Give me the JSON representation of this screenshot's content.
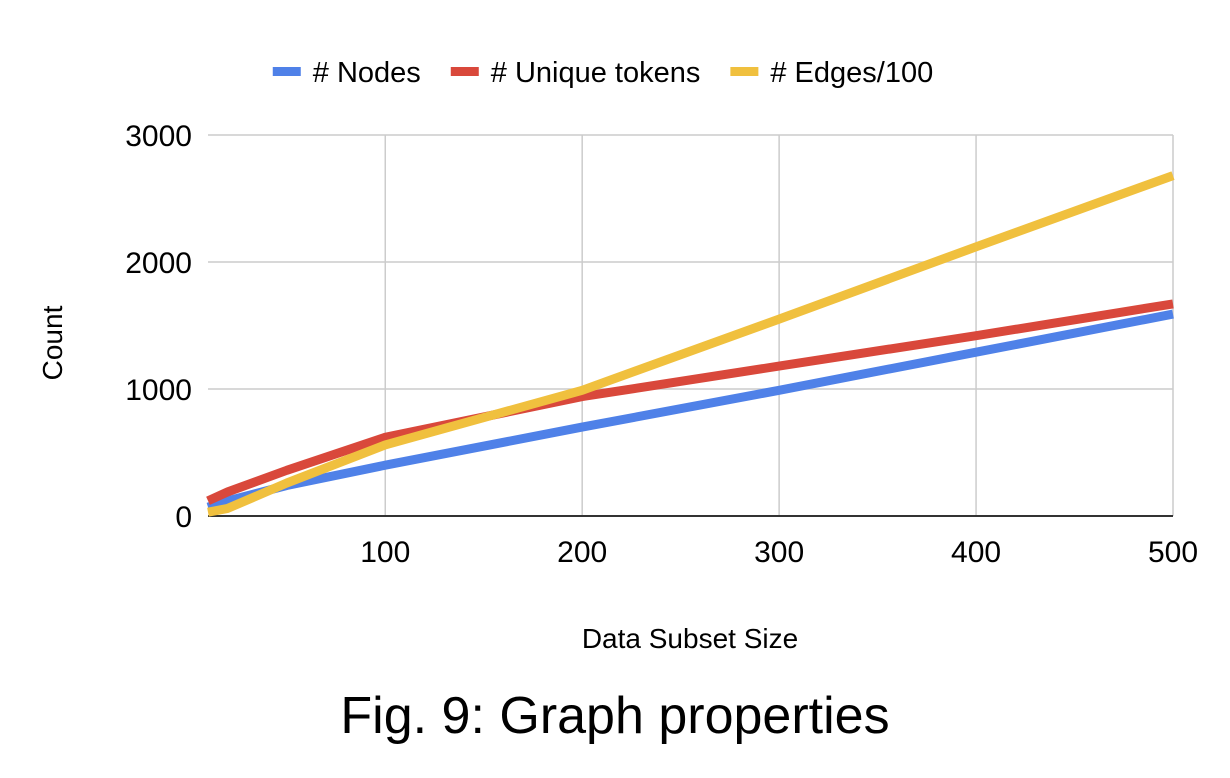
{
  "chart_data": {
    "type": "line",
    "xlabel": "Data Subset Size",
    "ylabel": "Count",
    "xlim": [
      10,
      500
    ],
    "ylim": [
      0,
      3000
    ],
    "x_ticks": [
      100,
      200,
      300,
      400,
      500
    ],
    "y_ticks": [
      0,
      1000,
      2000,
      3000
    ],
    "grid": true,
    "legend_position": "top",
    "series": [
      {
        "name": "# Nodes",
        "color": "#4f81e8",
        "x": [
          10,
          20,
          50,
          100,
          200,
          300,
          400,
          500
        ],
        "y": [
          70,
          120,
          240,
          400,
          700,
          990,
          1290,
          1590
        ]
      },
      {
        "name": "# Unique tokens",
        "color": "#d9483b",
        "x": [
          10,
          20,
          50,
          100,
          200,
          300,
          400,
          500
        ],
        "y": [
          120,
          190,
          360,
          620,
          940,
          1180,
          1420,
          1670
        ]
      },
      {
        "name": "# Edges/100",
        "color": "#f0c03e",
        "x": [
          10,
          20,
          50,
          100,
          200,
          300,
          400,
          500
        ],
        "y": [
          30,
          60,
          260,
          560,
          990,
          1550,
          2120,
          2680
        ]
      }
    ]
  },
  "caption": "Fig. 9: Graph properties"
}
